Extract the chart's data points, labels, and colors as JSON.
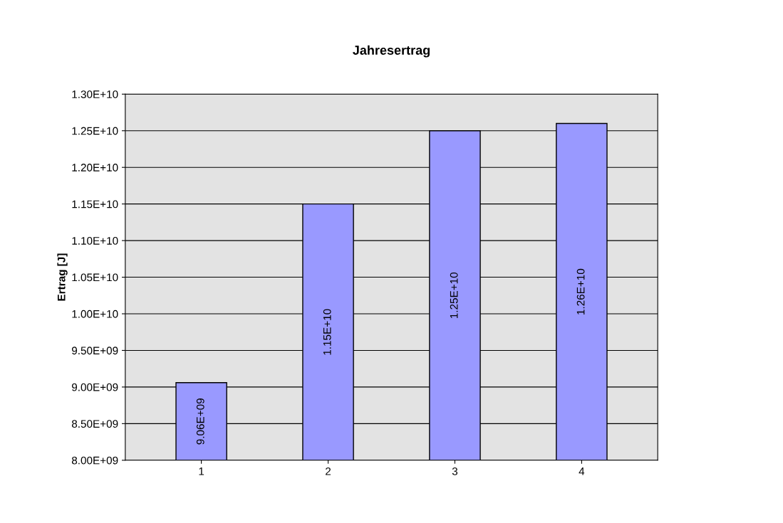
{
  "chart_data": {
    "type": "bar",
    "title": "Jahresertrag",
    "ylabel": "Ertrag [J]",
    "categories": [
      "1",
      "2",
      "3",
      "4"
    ],
    "values": [
      9060000000,
      11500000000,
      12500000000,
      12600000000
    ],
    "value_labels": [
      "9.06E+09",
      "1.15E+10",
      "1.25E+10",
      "1.26E+10"
    ],
    "color": "#9999ff",
    "ylim": [
      8000000000,
      13000000000
    ],
    "yticks": [
      {
        "value": 8000000000,
        "label": "8.00E+09"
      },
      {
        "value": 8500000000,
        "label": "8.50E+09"
      },
      {
        "value": 9000000000,
        "label": "9.00E+09"
      },
      {
        "value": 9500000000,
        "label": "9.50E+09"
      },
      {
        "value": 10000000000,
        "label": "1.00E+10"
      },
      {
        "value": 10500000000,
        "label": "1.05E+10"
      },
      {
        "value": 11000000000,
        "label": "1.10E+10"
      },
      {
        "value": 11500000000,
        "label": "1.15E+10"
      },
      {
        "value": 12000000000,
        "label": "1.20E+10"
      },
      {
        "value": 12500000000,
        "label": "1.25E+10"
      },
      {
        "value": 13000000000,
        "label": "1.30E+10"
      }
    ],
    "grid": "y",
    "legend": false
  }
}
